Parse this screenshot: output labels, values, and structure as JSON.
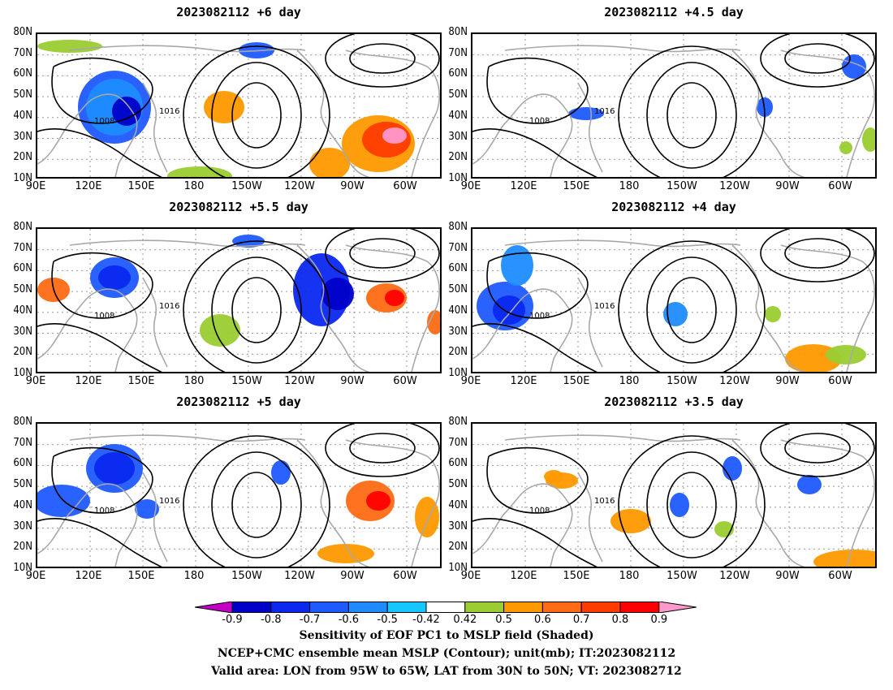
{
  "panels": [
    {
      "title": "2023082112 +6 day"
    },
    {
      "title": "2023082112 +4.5 day"
    },
    {
      "title": "2023082112 +5.5 day"
    },
    {
      "title": "2023082112 +4 day"
    },
    {
      "title": "2023082112 +5 day"
    },
    {
      "title": "2023082112 +3.5 day"
    }
  ],
  "axes": {
    "lat_labels": [
      "80N",
      "70N",
      "60N",
      "50N",
      "40N",
      "30N",
      "20N",
      "10N"
    ],
    "lon_labels": [
      "90E",
      "120E",
      "150E",
      "180",
      "150W",
      "120W",
      "90W",
      "60W"
    ]
  },
  "contour_labels": [
    "1016",
    "1008"
  ],
  "colorbar": {
    "labels": [
      "-0.9",
      "-0.8",
      "-0.7",
      "-0.6",
      "-0.5",
      "-0.42",
      "0.42",
      "0.5",
      "0.6",
      "0.7",
      "0.8",
      "0.9"
    ],
    "colors": [
      "#c400c4",
      "#0000c8",
      "#0a28f0",
      "#1e5aff",
      "#1e8cff",
      "#14c8ff",
      "#ffffff",
      "#9acd32",
      "#ff9900",
      "#ff6a14",
      "#ff3c00",
      "#ff0000",
      "#ff99cc"
    ]
  },
  "footer": {
    "line1": "Sensitivity of EOF PC1 to MSLP field (Shaded)",
    "line2": "NCEP+CMC ensemble mean MSLP (Contour); unit(mb); IT:2023082112",
    "line3": "Valid area: LON from 95W to 65W, LAT from 30N to 50N; VT: 2023082712"
  }
}
